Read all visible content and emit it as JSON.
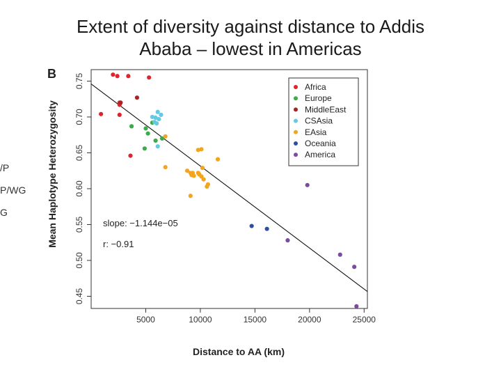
{
  "slide": {
    "title_line1": "Extent of diversity against distance to Addis",
    "title_line2": "Ababa – lowest in Americas",
    "left_fragments": [
      "/P",
      "P/WG",
      "G"
    ]
  },
  "chart_data": {
    "type": "scatter",
    "panel_label": "B",
    "title": "",
    "xlabel": "Distance to AA (km)",
    "ylabel": "Mean Haplotype Heterozygosity",
    "xlim": [
      0,
      25300
    ],
    "ylim": [
      0.433,
      0.766
    ],
    "xticks": [
      5000,
      10000,
      15000,
      20000,
      25000
    ],
    "yticks": [
      0.45,
      0.5,
      0.55,
      0.6,
      0.65,
      0.7,
      0.75
    ],
    "xtick_labels": [
      "5000",
      "10000",
      "15000",
      "20000",
      "25000"
    ],
    "ytick_labels": [
      "0.45",
      "0.50",
      "0.55",
      "0.60",
      "0.65",
      "0.70",
      "0.75"
    ],
    "grid": false,
    "legend_position": "top-right",
    "annotations": [
      "slope: −1.144e−05",
      "r: −0.91"
    ],
    "trend_line": {
      "slope": -1.144e-05,
      "intercept": 0.746
    },
    "series": [
      {
        "name": "Africa",
        "color": "#e0242e",
        "x": [
          2000,
          2400,
          3400,
          5300,
          2600,
          2600,
          900,
          2600,
          3600
        ],
        "y": [
          0.759,
          0.757,
          0.757,
          0.755,
          0.72,
          0.717,
          0.704,
          0.703,
          0.646
        ]
      },
      {
        "name": "Europe",
        "color": "#3aac48",
        "x": [
          3700,
          5000,
          5600,
          6500,
          5200,
          5900,
          4900
        ],
        "y": [
          0.687,
          0.684,
          0.692,
          0.67,
          0.677,
          0.667,
          0.656
        ]
      },
      {
        "name": "MiddleEast",
        "color": "#a82324",
        "x": [
          4200,
          2700
        ],
        "y": [
          0.727,
          0.72
        ]
      },
      {
        "name": "CSAsia",
        "color": "#63cae0",
        "x": [
          6100,
          6400,
          5600,
          5900,
          6200,
          5800,
          6000,
          6100
        ],
        "y": [
          0.707,
          0.703,
          0.7,
          0.699,
          0.697,
          0.693,
          0.691,
          0.659
        ]
      },
      {
        "name": "EAsia",
        "color": "#f3a51d",
        "x": [
          6800,
          10100,
          9800,
          11600,
          6800,
          10200,
          8800,
          9100,
          9300,
          9800,
          10100,
          10300,
          10700,
          9200,
          9400,
          9900,
          10600,
          9100
        ],
        "y": [
          0.673,
          0.655,
          0.654,
          0.641,
          0.63,
          0.629,
          0.625,
          0.622,
          0.622,
          0.622,
          0.617,
          0.613,
          0.606,
          0.619,
          0.618,
          0.62,
          0.603,
          0.59
        ]
      },
      {
        "name": "Oceania",
        "color": "#2e4fa1",
        "x": [
          14700,
          16100
        ],
        "y": [
          0.548,
          0.544
        ]
      },
      {
        "name": "America",
        "color": "#7a4c9f",
        "x": [
          19800,
          18000,
          22800,
          24100,
          24300
        ],
        "y": [
          0.605,
          0.528,
          0.508,
          0.491,
          0.436
        ]
      }
    ]
  }
}
